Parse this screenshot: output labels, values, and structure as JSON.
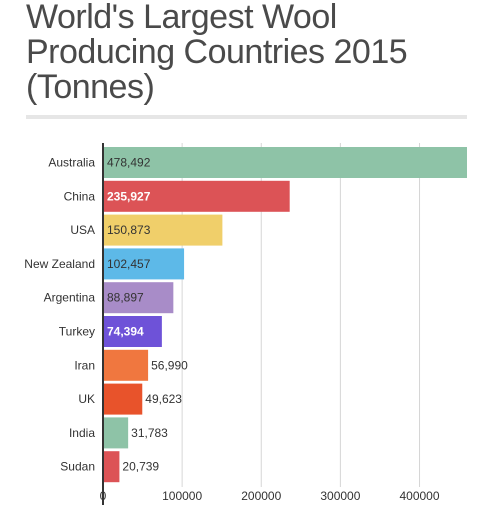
{
  "title": "World's Largest Wool Producing Countries 2015 (Tonnes)",
  "chart_data": {
    "type": "bar",
    "orientation": "horizontal",
    "title": "World's Largest Wool Producing Countries 2015 (Tonnes)",
    "categories": [
      "Australia",
      "China",
      "USA",
      "New Zealand",
      "Argentina",
      "Turkey",
      "Iran",
      "UK",
      "India",
      "Sudan"
    ],
    "values": [
      478492,
      235927,
      150873,
      102457,
      88897,
      74394,
      56990,
      49623,
      31783,
      20739
    ],
    "value_labels": [
      "478,492",
      "235,927",
      "150,873",
      "102,457",
      "88,897",
      "74,394",
      "56,990",
      "49,623",
      "31,783",
      "20,739"
    ],
    "colors": [
      "#8ec3a7",
      "#dc5356",
      "#f0cf6a",
      "#5db9e8",
      "#a88cc8",
      "#6e52d8",
      "#f0773f",
      "#e8532b",
      "#8ec3a7",
      "#dc5356"
    ],
    "label_colors": [
      "#333333",
      "#ffffff",
      "#333333",
      "#333333",
      "#333333",
      "#ffffff",
      "#333333",
      "#333333",
      "#333333",
      "#333333"
    ],
    "bold_labels": [
      false,
      true,
      false,
      false,
      false,
      true,
      false,
      false,
      false,
      false
    ],
    "x_ticks": [
      0,
      100000,
      200000,
      300000,
      400000
    ],
    "x_tick_labels": [
      "0",
      "100000",
      "200000",
      "300000",
      "400000"
    ],
    "xlim": [
      0,
      460000
    ],
    "xlabel": "",
    "ylabel": "",
    "grid": true,
    "legend": "none"
  }
}
